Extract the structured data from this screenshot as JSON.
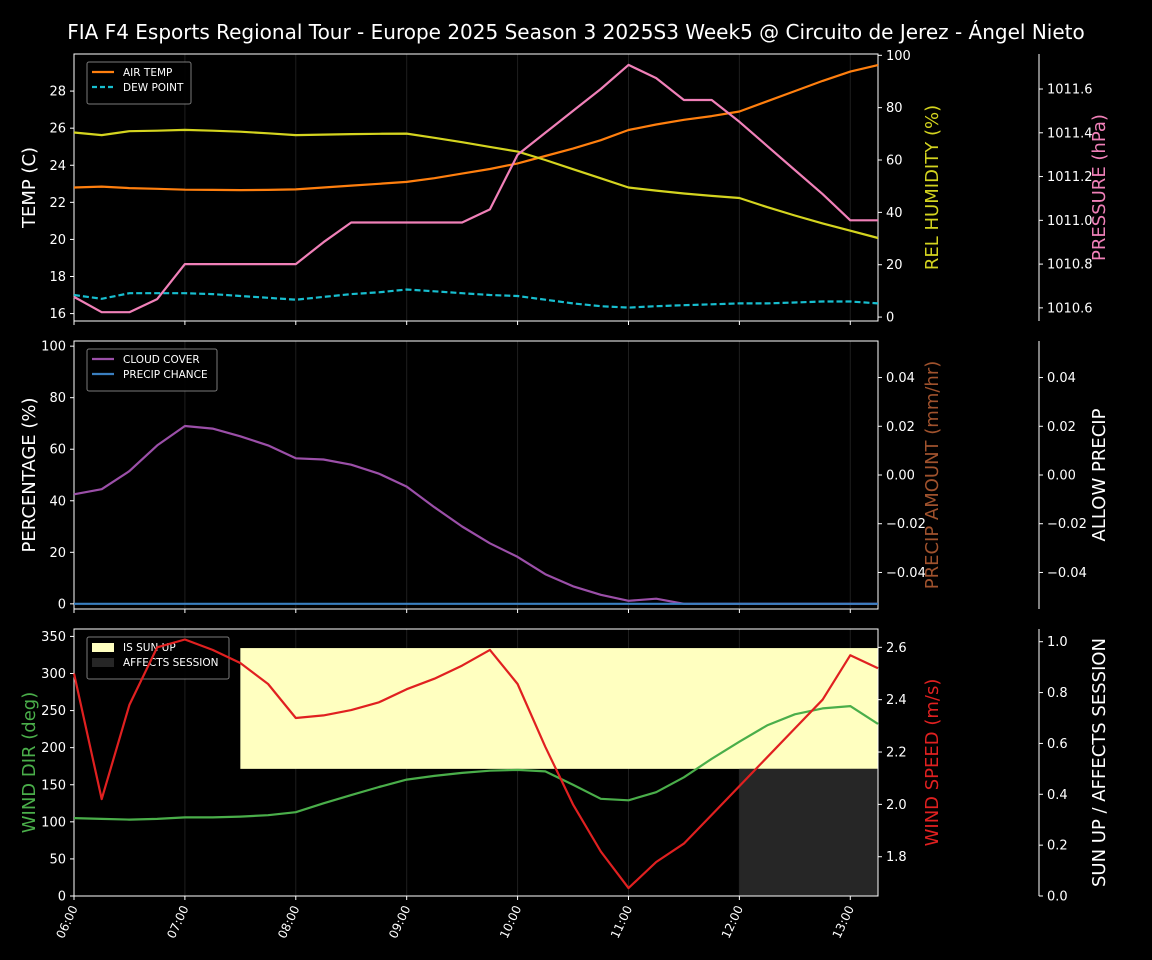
{
  "title": "FIA F4 Esports Regional Tour - Europe 2025 Season 3 2025S3 Week5 @ Circuito de Jerez - Ángel Nieto",
  "colors": {
    "air_temp": "#ff7f0e",
    "dew_point": "#17becf",
    "humidity": "#d4d41f",
    "pressure": "#f080b8",
    "cloud": "#9b4fa8",
    "precip_chance": "#3a7fc0",
    "precip_amount": "#a0522d",
    "wind_dir": "#4aae4a",
    "wind_speed": "#e02020",
    "sun_up": "#ffffc0",
    "affects": "#262626"
  },
  "chart_data": [
    {
      "type": "line",
      "name": "temperature-panel",
      "x_ticks": [
        "06:00",
        "07:00",
        "08:00",
        "09:00",
        "10:00",
        "11:00",
        "12:00",
        "13:00"
      ],
      "x_hours": [
        6.0,
        6.25,
        6.5,
        6.75,
        7.0,
        7.25,
        7.5,
        7.75,
        8.0,
        8.25,
        8.5,
        8.75,
        9.0,
        9.25,
        9.5,
        9.75,
        10.0,
        10.25,
        10.5,
        10.75,
        11.0,
        11.25,
        11.5,
        11.75,
        12.0,
        12.25,
        12.5,
        12.75,
        13.0,
        13.25
      ],
      "yleft": {
        "label": "TEMP (C)",
        "lim": [
          15.6,
          30.0
        ],
        "ticks": [
          16,
          18,
          20,
          22,
          24,
          26,
          28
        ]
      },
      "yright1": {
        "label": "REL HUMIDITY (%)",
        "lim": [
          -1.5,
          100.5
        ],
        "ticks": [
          0,
          20,
          40,
          60,
          80,
          100
        ]
      },
      "yright2": {
        "label": "PRESSURE (hPa)",
        "lim": [
          1010.54,
          1011.76
        ],
        "ticks": [
          "1010.6",
          "1010.8",
          "1011.0",
          "1011.2",
          "1011.4",
          "1011.6"
        ]
      },
      "legend": {
        "position": "top-left",
        "items": [
          "AIR TEMP",
          "DEW POINT"
        ]
      },
      "series": [
        {
          "name": "AIR TEMP",
          "axis": "left",
          "style": "solid",
          "values": [
            22.8,
            22.85,
            22.77,
            22.73,
            22.68,
            22.67,
            22.66,
            22.67,
            22.7,
            22.8,
            22.9,
            23.0,
            23.1,
            23.3,
            23.55,
            23.8,
            24.1,
            24.5,
            24.9,
            25.35,
            25.9,
            26.2,
            26.45,
            26.65,
            26.9,
            27.45,
            28.0,
            28.55,
            29.05,
            29.4
          ]
        },
        {
          "name": "DEW POINT",
          "axis": "left",
          "style": "dashed",
          "values": [
            17.0,
            16.8,
            17.1,
            17.1,
            17.1,
            17.05,
            16.95,
            16.85,
            16.75,
            16.9,
            17.05,
            17.15,
            17.3,
            17.2,
            17.1,
            17.0,
            16.95,
            16.75,
            16.55,
            16.4,
            16.32,
            16.4,
            16.45,
            16.5,
            16.55,
            16.55,
            16.6,
            16.65,
            16.65,
            16.55
          ]
        },
        {
          "axis": "right1",
          "style": "solid",
          "values": [
            70.5,
            69.5,
            71.0,
            71.2,
            71.5,
            71.2,
            70.8,
            70.2,
            69.5,
            69.7,
            69.9,
            70.0,
            70.1,
            68.5,
            66.8,
            65.0,
            63.2,
            60.0,
            56.5,
            53.0,
            49.5,
            48.3,
            47.2,
            46.3,
            45.5,
            42.0,
            38.8,
            35.8,
            33.0,
            30.2
          ]
        },
        {
          "axis": "right2",
          "style": "solid",
          "values": [
            1010.65,
            1010.58,
            1010.58,
            1010.64,
            1010.8,
            1010.8,
            1010.8,
            1010.8,
            1010.8,
            1010.9,
            1010.99,
            1010.99,
            1010.99,
            1010.99,
            1010.99,
            1011.05,
            1011.3,
            1011.4,
            1011.5,
            1011.6,
            1011.71,
            1011.65,
            1011.55,
            1011.55,
            1011.45,
            1011.34,
            1011.23,
            1011.12,
            1011.0,
            1011.0
          ]
        }
      ]
    },
    {
      "type": "line",
      "name": "cloud-panel",
      "yleft": {
        "label": "PERCENTAGE (%)",
        "lim": [
          -2,
          102
        ],
        "ticks": [
          0,
          20,
          40,
          60,
          80,
          100
        ]
      },
      "yright1": {
        "label": "PRECIP AMOUNT (mm/hr)",
        "lim": [
          -0.055,
          0.055
        ],
        "ticks": [
          "−0.04",
          "−0.02",
          "0.00",
          "0.02",
          "0.04"
        ]
      },
      "yright2": {
        "label": "ALLOW PRECIP",
        "lim": [
          -0.055,
          0.055
        ],
        "ticks": [
          "−0.04",
          "−0.02",
          "0.00",
          "0.02",
          "0.04"
        ]
      },
      "legend": {
        "position": "top-left",
        "items": [
          "CLOUD COVER",
          "PRECIP CHANCE"
        ]
      },
      "series": [
        {
          "name": "CLOUD COVER",
          "axis": "left",
          "values": [
            42.5,
            44.5,
            51.5,
            61.5,
            69.0,
            68.0,
            65.0,
            61.5,
            56.5,
            56.0,
            54.0,
            50.5,
            45.5,
            37.5,
            30.0,
            23.5,
            18.2,
            11.5,
            6.8,
            3.5,
            1.2,
            2.0,
            0.0,
            0.0,
            0.0,
            0.0,
            0.0,
            0.0,
            0.0,
            0.0
          ]
        },
        {
          "name": "PRECIP CHANCE",
          "axis": "left",
          "values": [
            0,
            0,
            0,
            0,
            0,
            0,
            0,
            0,
            0,
            0,
            0,
            0,
            0,
            0,
            0,
            0,
            0,
            0,
            0,
            0,
            0,
            0,
            0,
            0,
            0,
            0,
            0,
            0,
            0,
            0
          ]
        }
      ]
    },
    {
      "type": "line",
      "name": "wind-panel",
      "yleft": {
        "label": "WIND DIR (deg)",
        "lim": [
          0,
          360
        ],
        "ticks": [
          0,
          50,
          100,
          150,
          200,
          250,
          300,
          350
        ]
      },
      "yright1": {
        "label": "WIND SPEED (m/s)",
        "lim": [
          1.65,
          2.67
        ],
        "ticks": [
          "1.8",
          "2.0",
          "2.2",
          "2.4",
          "2.6"
        ]
      },
      "yright2": {
        "label": "SUN UP / AFFECTS SESSION",
        "lim": [
          0.0,
          1.05
        ],
        "ticks": [
          "0.0",
          "0.2",
          "0.4",
          "0.6",
          "0.8",
          "1.0"
        ]
      },
      "legend": {
        "position": "top-left",
        "items": [
          "IS SUN UP",
          "AFFECTS SESSION"
        ]
      },
      "sun_up": {
        "from": 7.5,
        "to": 13.25,
        "low": 0.5,
        "high": 1.0
      },
      "affects_session": {
        "from": 12.0,
        "to": 13.25,
        "low": 0.0,
        "high": 0.5
      },
      "series": [
        {
          "axis": "left",
          "values": [
            105,
            104,
            103,
            104,
            106,
            106,
            107,
            109,
            113,
            125,
            136,
            147,
            157,
            162,
            166,
            169,
            170,
            168,
            150,
            131,
            129,
            140,
            160,
            185,
            208,
            230,
            245,
            253,
            256,
            232
          ]
        },
        {
          "axis": "right1",
          "values": [
            2.5,
            2.02,
            2.38,
            2.6,
            2.63,
            2.59,
            2.54,
            2.46,
            2.33,
            2.34,
            2.36,
            2.39,
            2.44,
            2.48,
            2.53,
            2.59,
            2.46,
            2.22,
            2.0,
            1.82,
            1.68,
            1.78,
            1.85,
            1.96,
            2.07,
            2.18,
            2.29,
            2.4,
            2.57,
            2.52
          ]
        }
      ]
    }
  ]
}
